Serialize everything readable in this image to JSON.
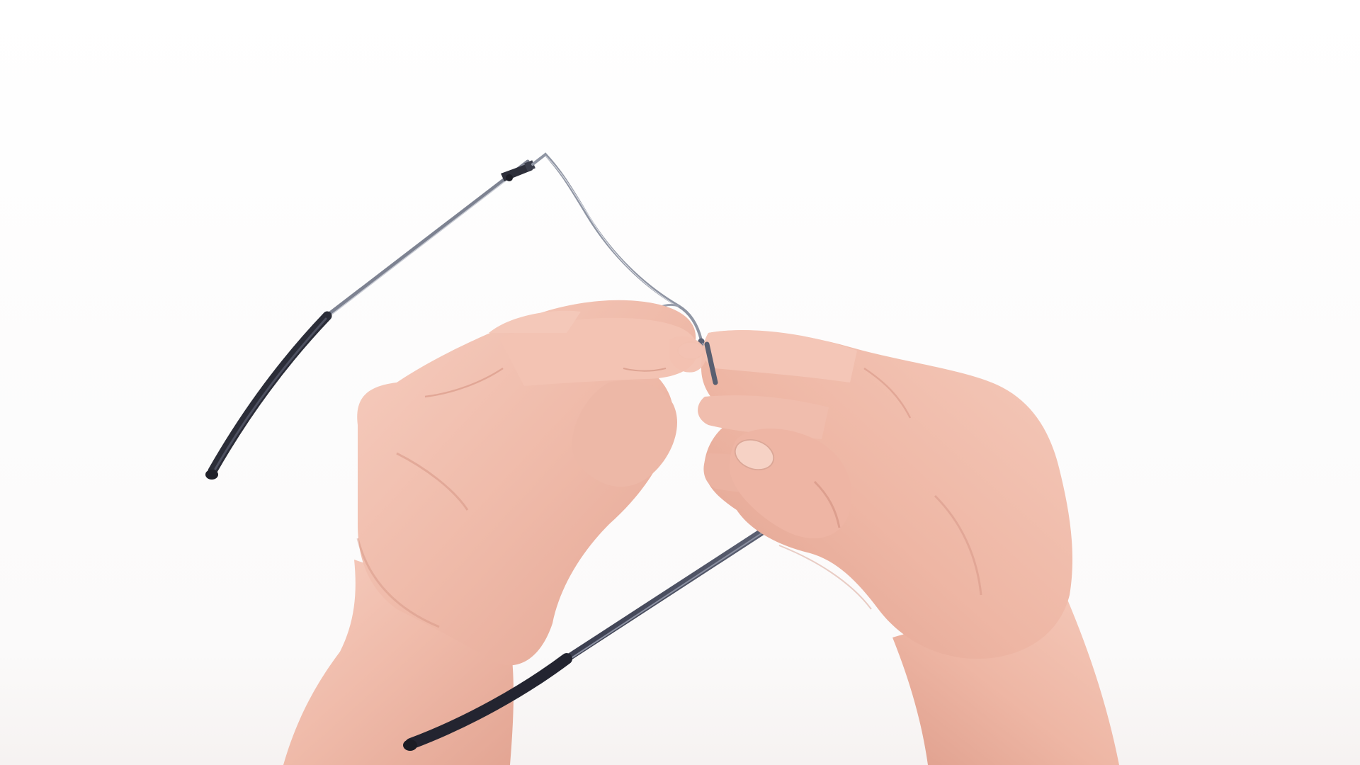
{
  "scene": {
    "subject": "hands-adjusting-rimless-eyeglasses",
    "background_color": "#ffffff",
    "skin_color": "#f1c0b0",
    "skin_shadow_color": "#d99a89",
    "frame_metal_color": "#9aa0ad",
    "temple_dark_color": "#2f3140",
    "temple_tip_color": "#24252f"
  }
}
